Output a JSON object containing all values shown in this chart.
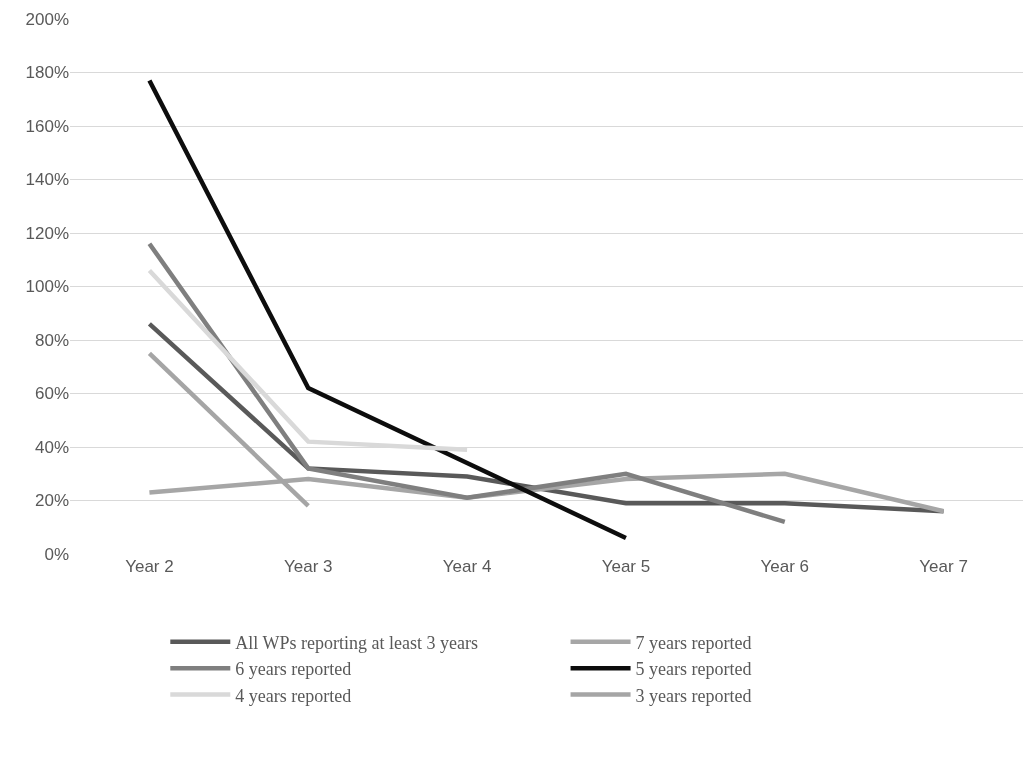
{
  "chart_data": {
    "type": "line",
    "categories": [
      "Year 2",
      "Year 3",
      "Year 4",
      "Year 5",
      "Year 6",
      "Year 7"
    ],
    "series": [
      {
        "name": "All WPs reporting at least 3 years",
        "color": "#595959",
        "values": [
          86,
          32,
          29,
          19,
          19,
          16
        ]
      },
      {
        "name": "7 years reported",
        "color": "#a6a6a6",
        "values": [
          23,
          28,
          21,
          28,
          30,
          16
        ]
      },
      {
        "name": "6 years reported",
        "color": "#7f7f7f",
        "values": [
          116,
          32,
          21,
          30,
          12,
          null
        ]
      },
      {
        "name": "5 years reported",
        "color": "#0d0d0d",
        "values": [
          177,
          62,
          34,
          6,
          null,
          null
        ]
      },
      {
        "name": "4 years reported",
        "color": "#d9d9d9",
        "values": [
          106,
          42,
          39,
          null,
          null,
          null
        ]
      },
      {
        "name": "3 years reported",
        "color": "#a5a5a5",
        "values": [
          75,
          18,
          null,
          null,
          null,
          null
        ]
      }
    ],
    "ylim": [
      0,
      200
    ],
    "yticks": [
      {
        "value": 0,
        "label": "0%"
      },
      {
        "value": 20,
        "label": "20%"
      },
      {
        "value": 40,
        "label": "40%"
      },
      {
        "value": 60,
        "label": "60%"
      },
      {
        "value": 80,
        "label": "80%"
      },
      {
        "value": 100,
        "label": "100%"
      },
      {
        "value": 120,
        "label": "120%"
      },
      {
        "value": 140,
        "label": "140%"
      },
      {
        "value": 160,
        "label": "160%"
      },
      {
        "value": 180,
        "label": "180%"
      },
      {
        "value": 200,
        "label": "200%"
      }
    ],
    "grid": "y",
    "legend": "bottom",
    "marker": "none",
    "line_style": "solid"
  }
}
